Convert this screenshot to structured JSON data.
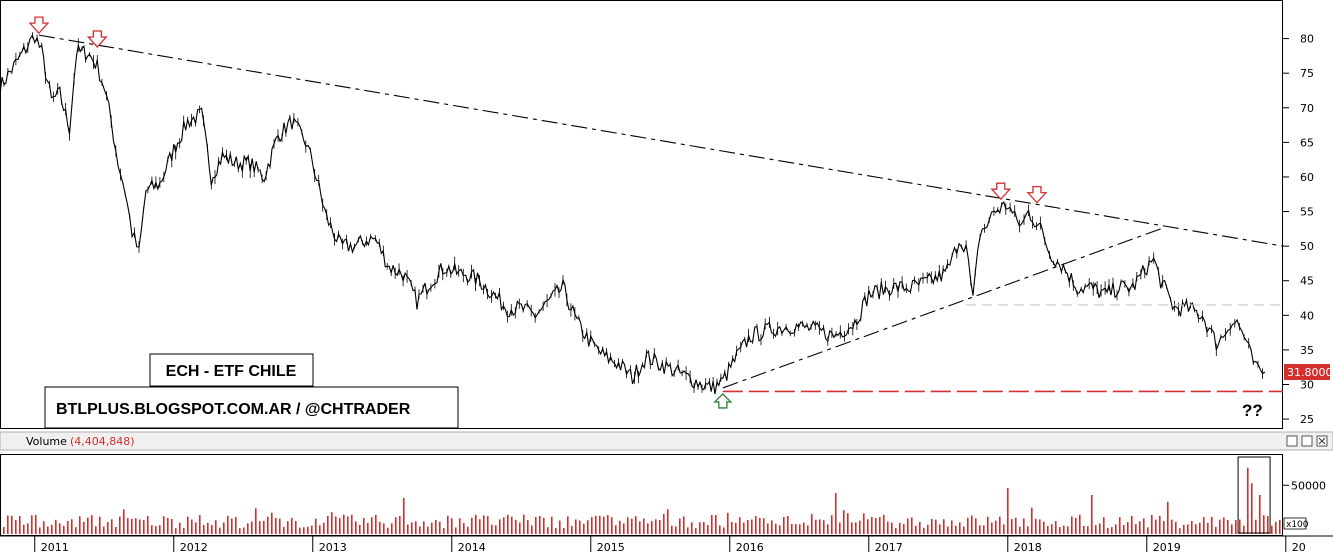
{
  "chart_data": [
    {
      "type": "line",
      "panel": "price",
      "ylim": [
        24,
        85
      ],
      "x_range": [
        2010.75,
        2019.98
      ],
      "y_ticks": [
        25,
        30,
        35,
        40,
        45,
        50,
        55,
        60,
        65,
        70,
        75,
        80
      ],
      "last_price_label": "31.8000",
      "annotations": {
        "title_box": "ECH - ETF CHILE",
        "source_box": "BTLPLUS.BLOGSPOT.COM.AR / @CHTRADER",
        "question": "??"
      },
      "series": [
        {
          "x": [
            2010.75,
            2010.85,
            2010.95,
            2011.0,
            2011.05,
            2011.12,
            2011.18,
            2011.25,
            2011.3,
            2011.38,
            2011.45,
            2011.5,
            2011.55,
            2011.6,
            2011.65,
            2011.7,
            2011.75,
            2011.8,
            2011.9,
            2012.0,
            2012.1,
            2012.2,
            2012.27,
            2012.35,
            2012.45,
            2012.55,
            2012.65,
            2012.75,
            2012.85,
            2012.95,
            2013.0,
            2013.1,
            2013.2,
            2013.3,
            2013.4,
            2013.45,
            2013.55,
            2013.65,
            2013.75,
            2013.85,
            2013.95,
            2014.05,
            2014.1,
            2014.2,
            2014.3,
            2014.4,
            2014.5,
            2014.6,
            2014.7,
            2014.8,
            2014.9,
            2015.0,
            2015.1,
            2015.2,
            2015.3,
            2015.4,
            2015.5,
            2015.6,
            2015.7,
            2015.8,
            2015.88,
            2015.95,
            2016.05,
            2016.15,
            2016.3,
            2016.45,
            2016.6,
            2016.75,
            2016.9,
            2017.0,
            2017.15,
            2017.3,
            2017.45,
            2017.55,
            2017.6,
            2017.65,
            2017.7,
            2017.75,
            2017.8,
            2017.85,
            2017.9,
            2018.0,
            2018.05,
            2018.1,
            2018.15,
            2018.25,
            2018.3,
            2018.4,
            2018.5,
            2018.6,
            2018.7,
            2018.8,
            2018.9,
            2019.0,
            2019.05,
            2019.1,
            2019.2,
            2019.3,
            2019.4,
            2019.45,
            2019.5,
            2019.55,
            2019.6,
            2019.65,
            2019.7,
            2019.75,
            2019.8,
            2019.85
          ],
          "y": [
            73,
            76,
            79,
            80.5,
            78,
            71,
            72,
            67,
            78,
            78,
            76,
            73,
            68,
            62,
            58,
            52,
            49,
            58,
            59,
            64,
            68,
            69,
            60,
            63,
            62,
            62,
            60,
            66,
            68,
            65,
            62,
            54,
            50,
            50,
            51,
            51,
            47,
            46,
            42,
            45,
            47,
            46,
            46,
            45,
            43,
            41,
            41,
            40,
            42,
            44,
            39,
            36,
            34,
            33,
            31,
            34,
            33,
            32,
            31,
            30,
            29.5,
            30.5,
            34,
            37,
            38,
            38.5,
            38,
            37,
            39,
            43,
            44,
            44,
            45,
            46,
            48,
            51,
            50,
            42,
            52,
            53,
            55,
            56,
            54,
            53,
            55,
            52,
            49,
            47,
            44,
            44,
            43,
            44,
            44,
            47,
            48,
            45,
            41,
            41,
            40,
            38,
            36,
            37,
            39,
            39,
            37,
            34,
            31.8,
            31.8
          ]
        }
      ],
      "markers": [
        {
          "kind": "down-arrow",
          "x": 2011.03,
          "y": 80.5
        },
        {
          "kind": "down-arrow",
          "x": 2011.45,
          "y": 78.5
        },
        {
          "kind": "down-arrow",
          "x": 2017.95,
          "y": 56.5
        },
        {
          "kind": "down-arrow",
          "x": 2018.21,
          "y": 56.0
        },
        {
          "kind": "up-arrow",
          "x": 2015.95,
          "y": 29.5
        }
      ],
      "lines": [
        {
          "style": "dashed",
          "color": "#000000",
          "from": [
            2011.03,
            80.5
          ],
          "to": [
            2019.98,
            50
          ]
        },
        {
          "style": "dashed",
          "color": "#000000",
          "from": [
            2015.95,
            29.5
          ],
          "to": [
            2019.1,
            52.5
          ]
        },
        {
          "style": "dashed",
          "color": "#d32f2f",
          "from": [
            2015.95,
            29
          ],
          "to": [
            2019.98,
            29
          ]
        },
        {
          "style": "dashed",
          "color": "#c8c8c8",
          "from": [
            2017.7,
            41.5
          ],
          "to": [
            2019.98,
            41.5
          ]
        }
      ]
    },
    {
      "type": "bar",
      "panel": "volume",
      "title": "Volume",
      "value_label": "(4,404,848)",
      "ylim": [
        0,
        80000
      ],
      "y_ticks": [
        50000
      ],
      "scale_label": "x100",
      "color": "#d32f2f",
      "spikes": [
        {
          "x": 2013.65,
          "y": 37000
        },
        {
          "x": 2016.75,
          "y": 42000
        },
        {
          "x": 2018.0,
          "y": 47000
        },
        {
          "x": 2018.6,
          "y": 40000
        },
        {
          "x": 2019.15,
          "y": 33000
        },
        {
          "x": 2019.72,
          "y": 68000
        },
        {
          "x": 2019.76,
          "y": 52000
        },
        {
          "x": 2019.8,
          "y": 40000
        }
      ]
    }
  ],
  "time_axis": {
    "labels": [
      "2011",
      "2012",
      "2013",
      "2014",
      "2015",
      "2016",
      "2017",
      "2018",
      "2019",
      "20"
    ]
  },
  "colors": {
    "price_line": "#000000",
    "volume_bars": "#d32f2f",
    "price_badge": "#d32f2f",
    "volume_value": "#d32f2f",
    "up_arrow": "#2e7d32",
    "down_arrow": "#d32f2f"
  }
}
